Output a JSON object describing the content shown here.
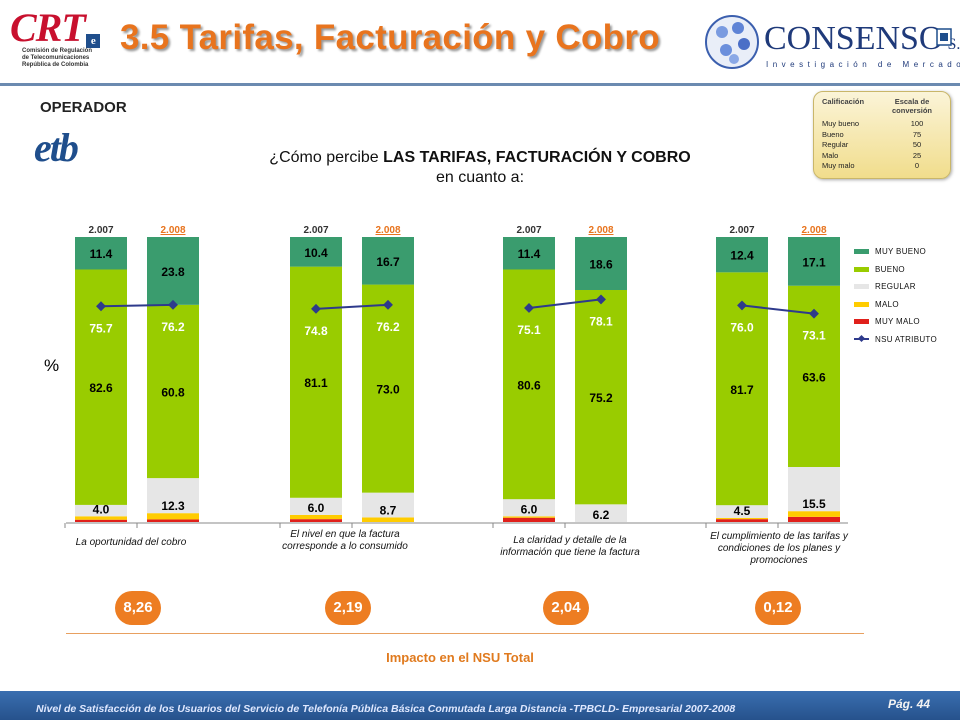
{
  "header": {
    "crt_logo_text": "CRT",
    "crt_logo_badge": "e",
    "crt_subtitle": [
      "Comisión de Regulación",
      "de Telecomunicaciones",
      "República de Colombia"
    ],
    "title": "3.5 Tarifas, Facturación y Cobro",
    "consenso_name": "CONSENSO",
    "consenso_sa": "S.A.",
    "consenso_tagline": "Investigación de Mercados"
  },
  "operator": {
    "label": "OPERADOR",
    "logo_text": "etb"
  },
  "question": {
    "prefix": "¿Cómo percibe ",
    "strong": "LAS TARIFAS, FACTURACIÓN Y COBRO",
    "line2": "en cuanto a:"
  },
  "scale_box": {
    "header_left": "Calificación",
    "header_right": "Escala de conversión",
    "rows": [
      {
        "label": "Muy bueno",
        "value": "100"
      },
      {
        "label": "Bueno",
        "value": "75"
      },
      {
        "label": "Regular",
        "value": "50"
      },
      {
        "label": "Malo",
        "value": "25"
      },
      {
        "label": "Muy malo",
        "value": "0"
      }
    ]
  },
  "colors": {
    "muy_bueno": "#3a9c6e",
    "bueno": "#99cc00",
    "regular": "#e6e6e6",
    "malo": "#ffcc00",
    "muy_malo": "#e0201b",
    "nsu_line": "#2e3a8c",
    "year2008": "#e8741e"
  },
  "chart_data": {
    "type": "bar",
    "stacked": true,
    "unit_label": "%",
    "ylim": [
      0,
      100
    ],
    "legend": {
      "placement": "right",
      "entries": [
        "MUY BUENO",
        "BUENO",
        "REGULAR",
        "MALO",
        "MUY MALO",
        "NSU ATRIBUTO"
      ]
    },
    "groups": [
      {
        "attribute": "La oportunidad  del cobro",
        "impact": "8,26",
        "bars": [
          {
            "year": "2.007",
            "muy_bueno": 11.4,
            "bueno": 82.6,
            "regular": 4.0,
            "malo": 1.2,
            "muy_malo": 0.8,
            "nsu": 75.7
          },
          {
            "year": "2.008",
            "muy_bueno": 23.8,
            "bueno": 60.8,
            "regular": 12.3,
            "malo": 2.2,
            "muy_malo": 0.9,
            "nsu": 76.2
          }
        ]
      },
      {
        "attribute": "El nivel en que la factura corresponde a lo consumido",
        "impact": "2,19",
        "bars": [
          {
            "year": "2.007",
            "muy_bueno": 10.4,
            "bueno": 81.1,
            "regular": 6.0,
            "malo": 1.5,
            "muy_malo": 1.0,
            "nsu": 74.8
          },
          {
            "year": "2.008",
            "muy_bueno": 16.7,
            "bueno": 73.0,
            "regular": 8.7,
            "malo": 1.6,
            "muy_malo": 0.0,
            "nsu": 76.2
          }
        ]
      },
      {
        "attribute": "La claridad y detalle de la información que tiene la factura",
        "impact": "2,04",
        "bars": [
          {
            "year": "2.007",
            "muy_bueno": 11.4,
            "bueno": 80.6,
            "regular": 6.0,
            "malo": 0.5,
            "muy_malo": 1.5,
            "nsu": 75.1
          },
          {
            "year": "2.008",
            "muy_bueno": 18.6,
            "bueno": 75.2,
            "regular": 6.2,
            "malo": 0.0,
            "muy_malo": 0.0,
            "nsu": 78.1
          }
        ]
      },
      {
        "attribute": "El cumplimiento de las tarifas y condiciones de los planes y promociones",
        "impact": "0,12",
        "bars": [
          {
            "year": "2.007",
            "muy_bueno": 12.4,
            "bueno": 81.7,
            "regular": 4.5,
            "malo": 0.4,
            "muy_malo": 1.0,
            "nsu": 76.0
          },
          {
            "year": "2.008",
            "muy_bueno": 17.1,
            "bueno": 63.6,
            "regular": 15.5,
            "malo": 2.0,
            "muy_malo": 1.8,
            "nsu": 73.1
          }
        ]
      }
    ]
  },
  "impact": {
    "label": "Impacto en el NSU Total"
  },
  "footer": {
    "text": "Nivel de Satisfacción de los Usuarios del Servicio de Telefonía Pública Básica Conmutada Larga Distancia -TPBCLD- Empresarial 2007-2008",
    "page": "Pág. 44"
  }
}
